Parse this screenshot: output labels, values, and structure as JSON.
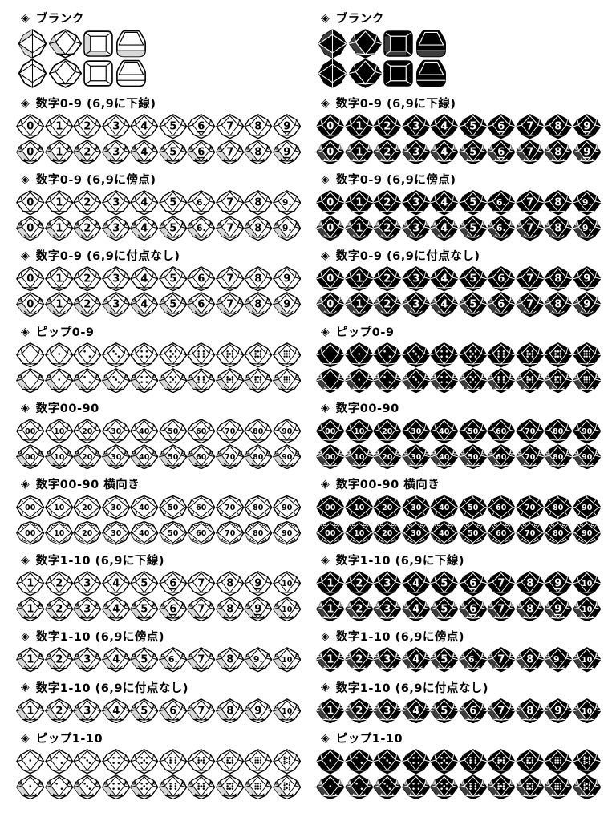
{
  "page": {
    "background": "#ffffff",
    "ink": "#000000"
  },
  "header_bullet": "◈",
  "columns": [
    {
      "id": "white-dice",
      "style": "outline",
      "die_color": "#ffffff",
      "line_color": "#000000"
    },
    {
      "id": "black-dice",
      "style": "filled",
      "die_color": "#000000",
      "line_color": "#ffffff"
    }
  ],
  "sections": [
    {
      "id": "blank",
      "label": "ブランク",
      "kind": "blank",
      "rows": 2,
      "shapes": [
        "d10-edge",
        "d10-face",
        "square",
        "barrel"
      ]
    },
    {
      "id": "numbers-0-9-underline",
      "label": "数字0-9 (6,9に下線)",
      "kind": "numbers",
      "rows": 2,
      "values": [
        "0",
        "1",
        "2",
        "3",
        "4",
        "5",
        "6",
        "7",
        "8",
        "9"
      ],
      "underlined_values": [
        "6",
        "9"
      ]
    },
    {
      "id": "numbers-0-9-dot",
      "label": "数字0-9 (6,9に傍点)",
      "kind": "numbers",
      "rows": 2,
      "values": [
        "0",
        "1",
        "2",
        "3",
        "4",
        "5",
        "6.",
        "7",
        "8",
        "9."
      ]
    },
    {
      "id": "numbers-0-9-plain",
      "label": "数字0-9 (6,9に付点なし)",
      "kind": "numbers",
      "rows": 2,
      "values": [
        "0",
        "1",
        "2",
        "3",
        "4",
        "5",
        "6",
        "7",
        "8",
        "9"
      ]
    },
    {
      "id": "pips-0-9",
      "label": "ピップ0-9",
      "kind": "pips",
      "rows": 2,
      "values": [
        0,
        1,
        2,
        3,
        4,
        5,
        6,
        7,
        8,
        9
      ]
    },
    {
      "id": "numbers-00-90",
      "label": "数字00-90",
      "kind": "numbers",
      "rows": 2,
      "values": [
        "00",
        "10",
        "20",
        "30",
        "40",
        "50",
        "60",
        "70",
        "80",
        "90"
      ]
    },
    {
      "id": "numbers-00-90-sideways",
      "label": "数字00-90 横向き",
      "kind": "numbers",
      "rows": 2,
      "orientation": "sideways",
      "values": [
        "00",
        "10",
        "20",
        "30",
        "40",
        "50",
        "60",
        "70",
        "80",
        "90"
      ]
    },
    {
      "id": "numbers-1-10-underline",
      "label": "数字1-10 (6,9に下線)",
      "kind": "numbers",
      "rows": 2,
      "values": [
        "1",
        "2",
        "3",
        "4",
        "5",
        "6",
        "7",
        "8",
        "9",
        "10"
      ],
      "underlined_values": [
        "6",
        "9"
      ]
    },
    {
      "id": "numbers-1-10-dot",
      "label": "数字1-10 (6,9に傍点)",
      "kind": "numbers",
      "rows": 1,
      "ornate_only": true,
      "values": [
        "1",
        "2",
        "3",
        "4",
        "5",
        "6.",
        "7",
        "8",
        "9.",
        "10"
      ]
    },
    {
      "id": "numbers-1-10-plain",
      "label": "数字1-10 (6,9に付点なし)",
      "kind": "numbers",
      "rows": 1,
      "ornate_only": true,
      "values": [
        "1",
        "2",
        "3",
        "4",
        "5",
        "6",
        "7",
        "8",
        "9",
        "10"
      ]
    },
    {
      "id": "pips-1-10",
      "label": "ピップ1-10",
      "kind": "pips",
      "rows": 2,
      "values": [
        1,
        2,
        3,
        4,
        5,
        6,
        7,
        8,
        9,
        10
      ]
    }
  ]
}
